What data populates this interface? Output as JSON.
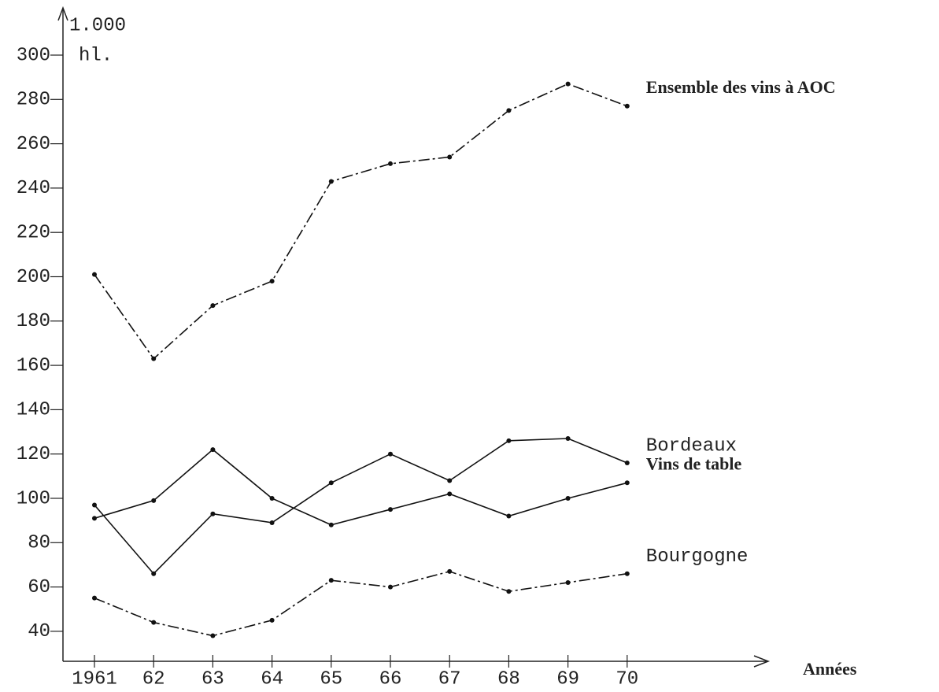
{
  "chart_data": {
    "type": "line",
    "ylabel": [
      "1.000",
      "hl."
    ],
    "xlabel": "Années",
    "categories": [
      "1961",
      "62",
      "63",
      "64",
      "65",
      "66",
      "67",
      "68",
      "69",
      "70"
    ],
    "series": [
      {
        "name": "Ensemble des vins à AOC",
        "color": "#111111",
        "dash": "dashdot",
        "bold": true,
        "values": [
          201,
          163,
          187,
          198,
          243,
          251,
          254,
          275,
          287,
          277
        ]
      },
      {
        "name": "Bordeaux",
        "color": "#111111",
        "dash": "solid",
        "bold": false,
        "values": [
          97,
          66,
          93,
          89,
          107,
          120,
          108,
          126,
          127,
          116
        ]
      },
      {
        "name": "Vins de table",
        "color": "#111111",
        "dash": "solid",
        "bold": true,
        "values": [
          91,
          99,
          122,
          100,
          88,
          95,
          102,
          92,
          100,
          107
        ]
      },
      {
        "name": "Bourgogne",
        "color": "#111111",
        "dash": "dashdot",
        "bold": false,
        "values": [
          55,
          44,
          38,
          45,
          63,
          60,
          67,
          58,
          62,
          66
        ]
      }
    ],
    "ylim": [
      27,
      320
    ],
    "yticks": [
      40,
      60,
      80,
      100,
      120,
      140,
      160,
      180,
      200,
      220,
      240,
      260,
      280,
      300
    ],
    "grid": false
  }
}
